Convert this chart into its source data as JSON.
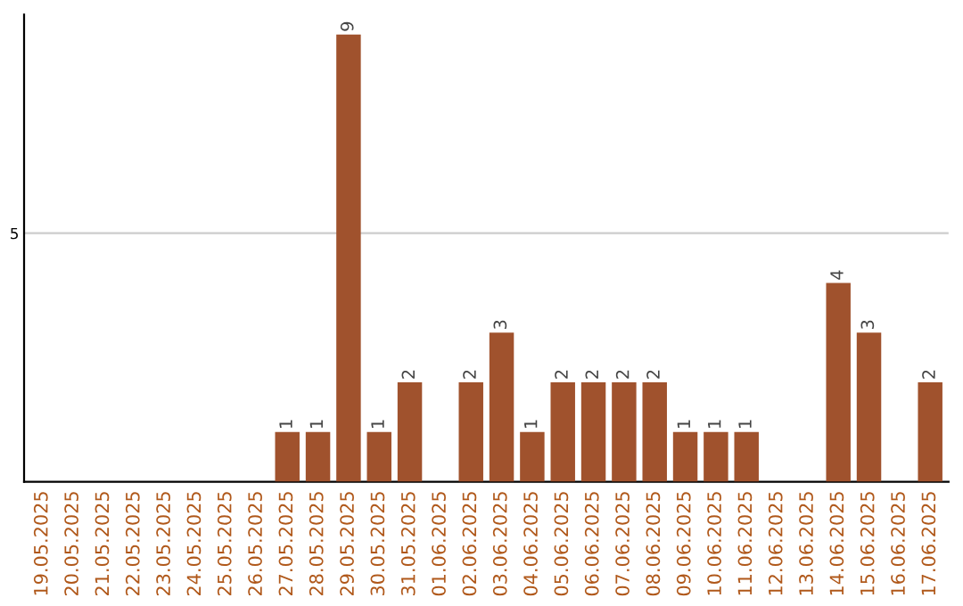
{
  "chart_data": {
    "type": "bar",
    "categories": [
      "19.05.2025",
      "20.05.2025",
      "21.05.2025",
      "22.05.2025",
      "23.05.2025",
      "24.05.2025",
      "25.05.2025",
      "26.05.2025",
      "27.05.2025",
      "28.05.2025",
      "29.05.2025",
      "30.05.2025",
      "31.05.2025",
      "01.06.2025",
      "02.06.2025",
      "03.06.2025",
      "04.06.2025",
      "05.06.2025",
      "06.06.2025",
      "07.06.2025",
      "08.06.2025",
      "09.06.2025",
      "10.06.2025",
      "11.06.2025",
      "12.06.2025",
      "13.06.2025",
      "14.06.2025",
      "15.06.2025",
      "16.06.2025",
      "17.06.2025"
    ],
    "values": [
      0,
      0,
      0,
      0,
      0,
      0,
      0,
      0,
      1,
      1,
      9,
      1,
      2,
      0,
      2,
      3,
      1,
      2,
      2,
      2,
      2,
      1,
      1,
      1,
      0,
      0,
      4,
      3,
      0,
      2
    ],
    "value_labels": [
      null,
      null,
      null,
      null,
      null,
      null,
      null,
      null,
      "1",
      "1",
      "9",
      "1",
      "2",
      null,
      "2",
      "3",
      "1",
      "2",
      "2",
      "2",
      "2",
      "1",
      "1",
      "1",
      null,
      null,
      "4",
      "3",
      null,
      "2"
    ],
    "color": "#a0522d",
    "ylim": [
      0,
      9.4
    ],
    "yticks": [
      5
    ],
    "grid": "y"
  }
}
